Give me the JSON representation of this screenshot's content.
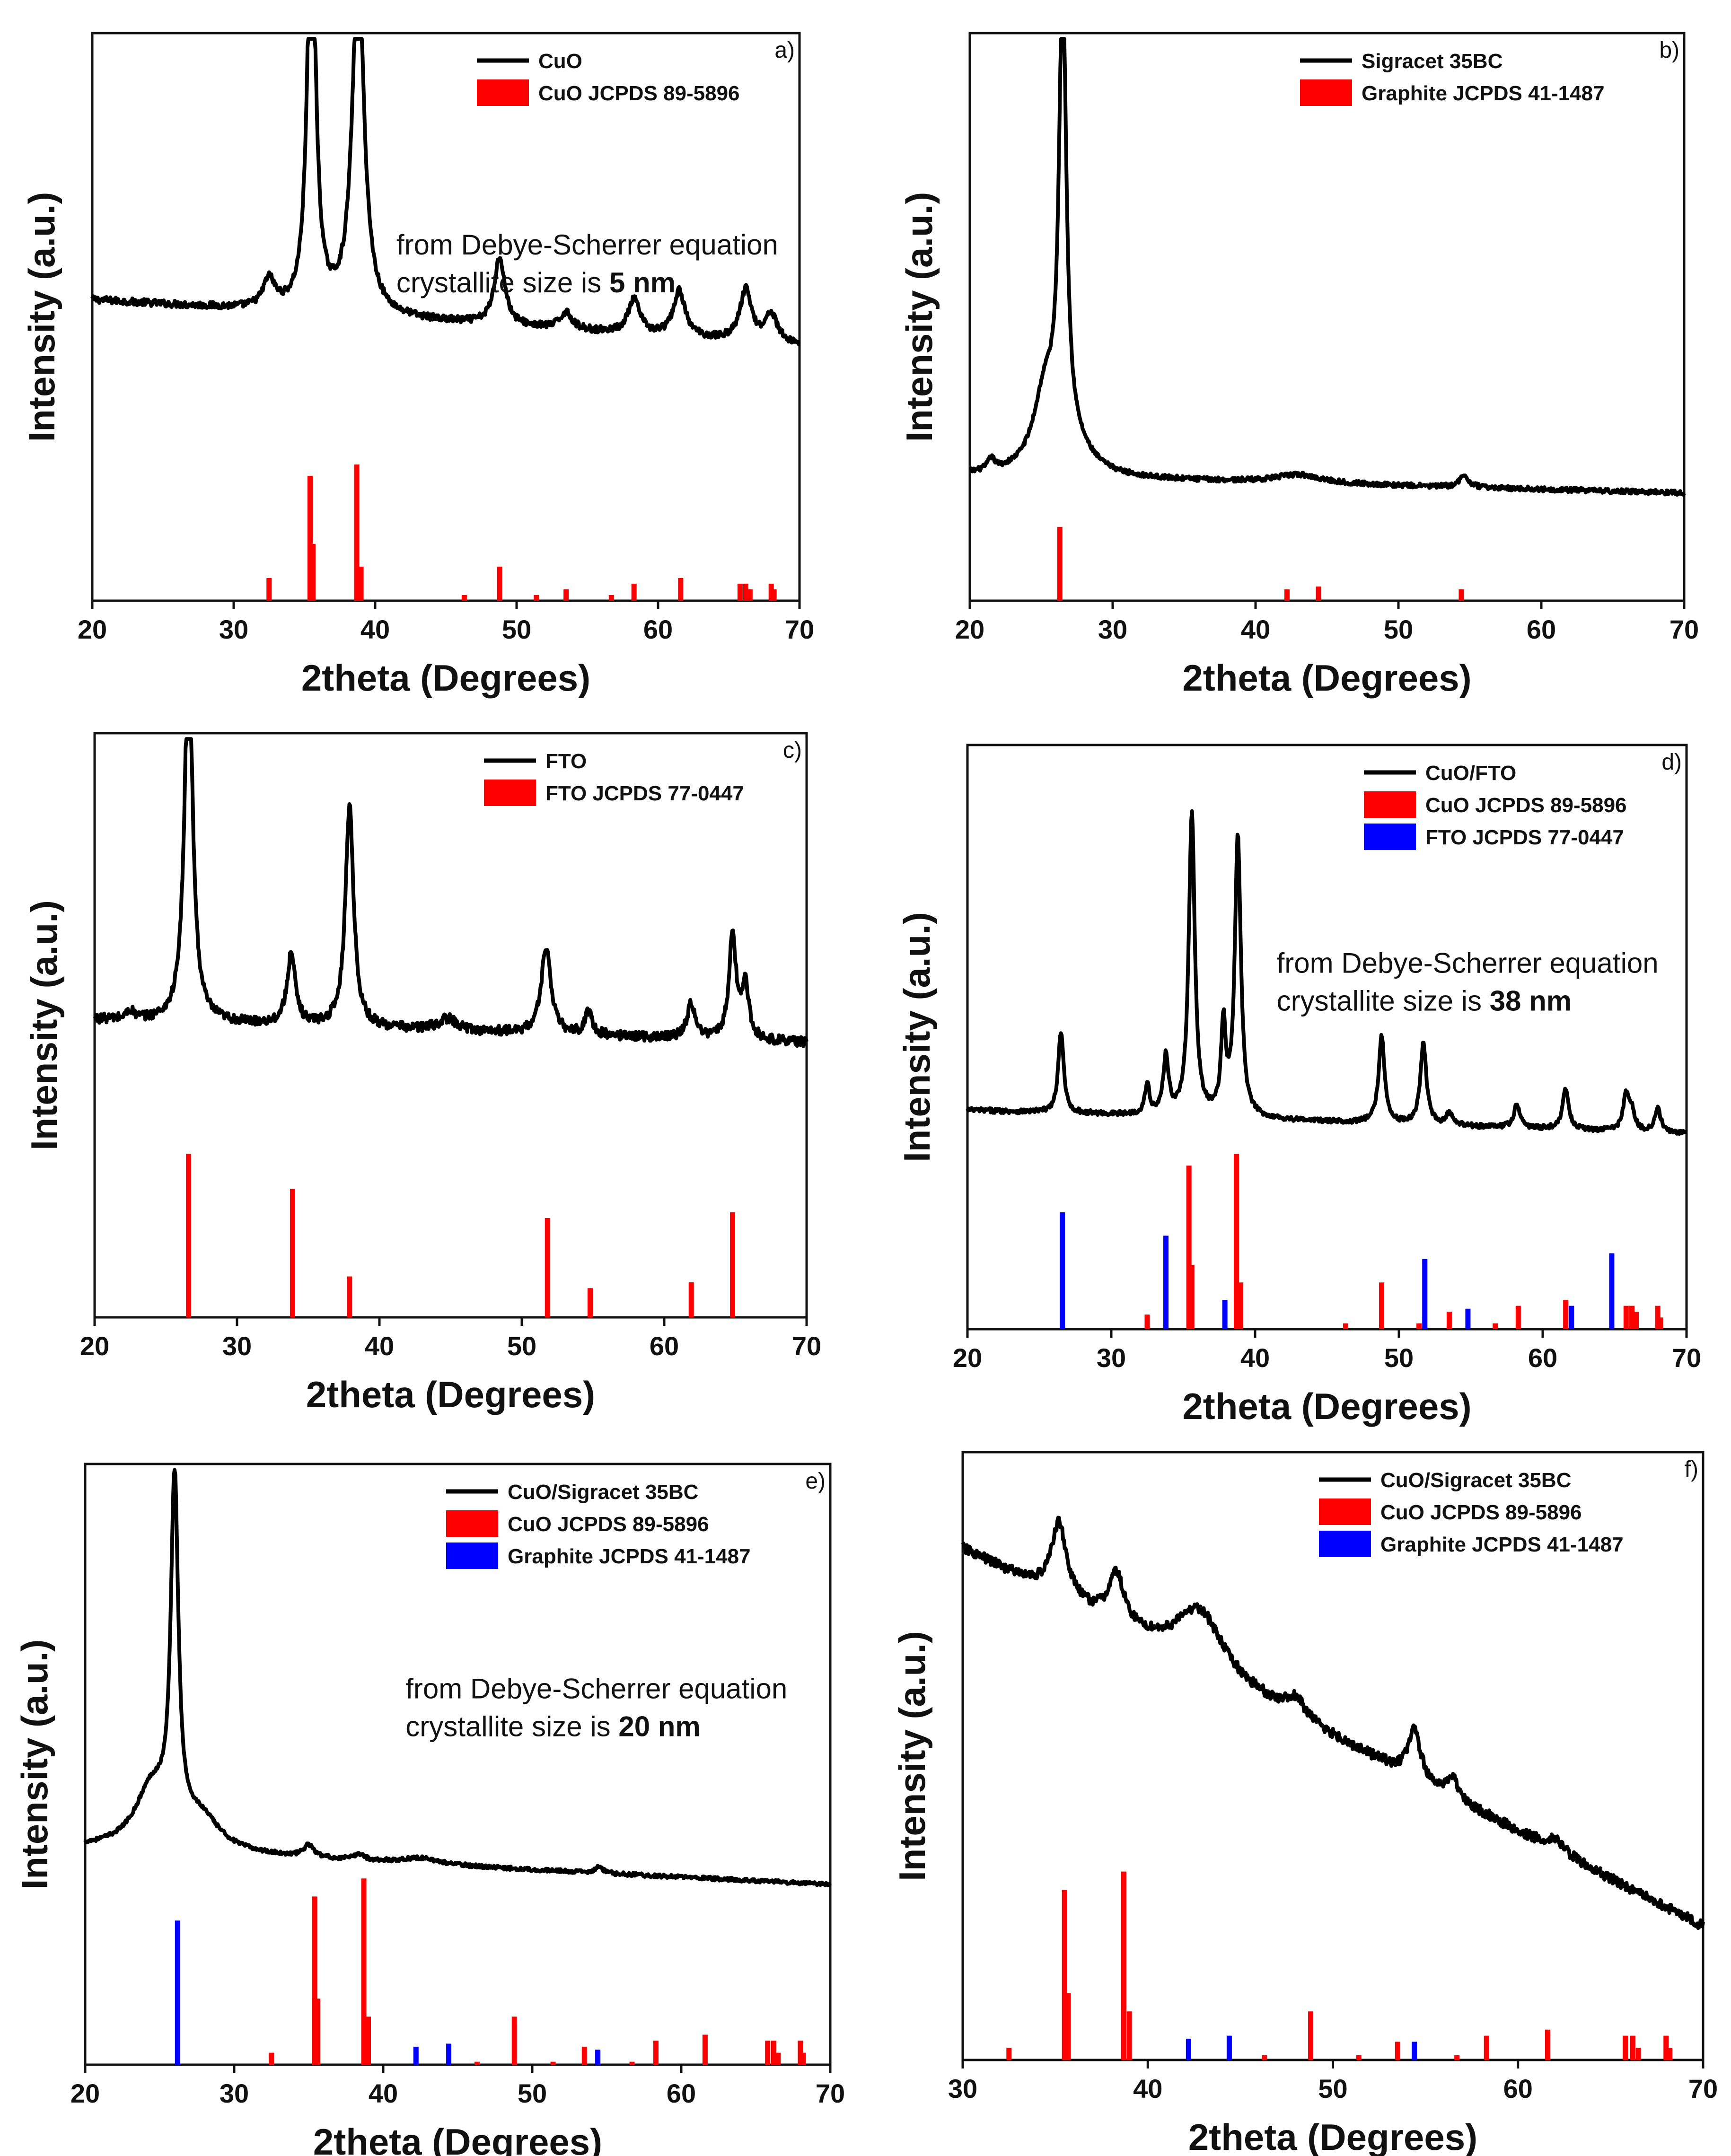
{
  "figure": {
    "title": ""
  },
  "chart_data": [
    {
      "id": "a",
      "type": "line",
      "panel_label": "a)",
      "title": "",
      "xlabel": "2theta (Degrees)",
      "ylabel": "Intensity (a.u.)",
      "xlim": [
        20,
        70
      ],
      "xticks": [
        20,
        30,
        40,
        50,
        60,
        70
      ],
      "xtick_labels": [
        "20",
        "30",
        "40",
        "50",
        "60",
        "70"
      ],
      "grid": false,
      "legend_position": "top-right",
      "annotation": {
        "line1": "from Debye-Scherrer equation",
        "line2_prefix": "crystallite size is ",
        "line2_bold": "5 nm"
      },
      "series": [
        {
          "name": "CuO",
          "kind": "pattern",
          "color": "#000000",
          "baseline": 0.53,
          "slope": -0.08,
          "noise": 0.006,
          "peaks": [
            [
              32.5,
              0.05,
              0.5
            ],
            [
              35.5,
              0.74,
              0.35
            ],
            [
              38.8,
              0.62,
              0.5
            ],
            [
              48.8,
              0.12,
              0.45
            ],
            [
              53.5,
              0.03,
              0.5
            ],
            [
              58.3,
              0.06,
              0.5
            ],
            [
              61.5,
              0.08,
              0.5
            ],
            [
              66.2,
              0.09,
              0.5
            ],
            [
              68.0,
              0.05,
              0.5
            ]
          ]
        },
        {
          "name": "CuO JCPDS 89-5896",
          "kind": "ref",
          "color": "#ff0000",
          "lines": [
            [
              32.5,
              0.04
            ],
            [
              35.4,
              0.22
            ],
            [
              35.6,
              0.1
            ],
            [
              38.7,
              0.24
            ],
            [
              39.0,
              0.06
            ],
            [
              46.3,
              0.01
            ],
            [
              48.8,
              0.06
            ],
            [
              51.4,
              0.01
            ],
            [
              53.5,
              0.02
            ],
            [
              56.7,
              0.01
            ],
            [
              58.3,
              0.03
            ],
            [
              61.6,
              0.04
            ],
            [
              65.8,
              0.03
            ],
            [
              66.2,
              0.03
            ],
            [
              66.5,
              0.02
            ],
            [
              68.0,
              0.03
            ],
            [
              68.2,
              0.02
            ]
          ]
        }
      ]
    },
    {
      "id": "b",
      "type": "line",
      "panel_label": "b)",
      "title": "",
      "xlabel": "2theta (Degrees)",
      "ylabel": "Intensity (a.u.)",
      "xlim": [
        20,
        70
      ],
      "xticks": [
        20,
        30,
        40,
        50,
        60,
        70
      ],
      "xtick_labels": [
        "20",
        "30",
        "40",
        "50",
        "60",
        "70"
      ],
      "grid": false,
      "legend_position": "top-right",
      "annotation": null,
      "series": [
        {
          "name": "Sigracet 35BC",
          "kind": "pattern",
          "color": "#000000",
          "baseline": 0.22,
          "slope": -0.03,
          "noise": 0.004,
          "peaks": [
            [
              21.5,
              0.02,
              0.3
            ],
            [
              25.3,
              0.14,
              1.0
            ],
            [
              26.5,
              0.82,
              0.3
            ],
            [
              27.3,
              0.04,
              1.5
            ],
            [
              43.0,
              0.015,
              2.0
            ],
            [
              54.6,
              0.02,
              0.4
            ]
          ]
        },
        {
          "name": "Graphite JCPDS 41-1487",
          "kind": "ref",
          "color": "#ff0000",
          "lines": [
            [
              26.3,
              0.13
            ],
            [
              42.2,
              0.02
            ],
            [
              44.4,
              0.025
            ],
            [
              54.4,
              0.02
            ]
          ]
        }
      ]
    },
    {
      "id": "c",
      "type": "line",
      "panel_label": "c)",
      "title": "",
      "xlabel": "2theta (Degrees)",
      "ylabel": "Intensity (a.u.)",
      "xlim": [
        20,
        70
      ],
      "xticks": [
        20,
        30,
        40,
        50,
        60,
        70
      ],
      "xtick_labels": [
        "20",
        "30",
        "40",
        "50",
        "60",
        "70"
      ],
      "grid": false,
      "legend_position": "top-right",
      "annotation": null,
      "series": [
        {
          "name": "FTO",
          "kind": "pattern",
          "color": "#000000",
          "baseline": 0.51,
          "slope": -0.04,
          "noise": 0.008,
          "peaks": [
            [
              26.6,
              0.63,
              0.35
            ],
            [
              33.8,
              0.12,
              0.35
            ],
            [
              37.9,
              0.38,
              0.35
            ],
            [
              51.7,
              0.15,
              0.4
            ],
            [
              54.7,
              0.04,
              0.3
            ],
            [
              61.9,
              0.06,
              0.35
            ],
            [
              64.8,
              0.18,
              0.3
            ],
            [
              65.7,
              0.09,
              0.3
            ],
            [
              44.8,
              0.02,
              0.8
            ],
            [
              22.5,
              0.015,
              0.3
            ]
          ]
        },
        {
          "name": "FTO JCPDS 77-0447",
          "kind": "ref",
          "color": "#ff0000",
          "lines": [
            [
              26.6,
              0.28
            ],
            [
              33.9,
              0.22
            ],
            [
              37.9,
              0.07
            ],
            [
              51.8,
              0.17
            ],
            [
              54.8,
              0.05
            ],
            [
              61.9,
              0.06
            ],
            [
              64.8,
              0.18
            ]
          ]
        }
      ]
    },
    {
      "id": "d",
      "type": "line",
      "panel_label": "d)",
      "title": "",
      "xlabel": "2theta (Degrees)",
      "ylabel": "Intensity (a.u.)",
      "xlim": [
        20,
        70
      ],
      "xticks": [
        20,
        30,
        40,
        50,
        60,
        70
      ],
      "xtick_labels": [
        "20",
        "30",
        "40",
        "50",
        "60",
        "70"
      ],
      "grid": false,
      "legend_position": "top-right",
      "annotation": {
        "line1": "from Debye-Scherrer equation",
        "line2_prefix": "crystallite size is ",
        "line2_bold": "38 nm"
      },
      "series": [
        {
          "name": "CuO/FTO",
          "kind": "pattern",
          "color": "#000000",
          "baseline": 0.375,
          "slope": -0.04,
          "noise": 0.004,
          "peaks": [
            [
              26.5,
              0.14,
              0.22
            ],
            [
              32.5,
              0.05,
              0.2
            ],
            [
              33.8,
              0.1,
              0.22
            ],
            [
              35.6,
              0.52,
              0.25
            ],
            [
              37.8,
              0.15,
              0.2
            ],
            [
              38.8,
              0.48,
              0.25
            ],
            [
              48.8,
              0.15,
              0.25
            ],
            [
              51.7,
              0.14,
              0.25
            ],
            [
              53.5,
              0.02,
              0.25
            ],
            [
              58.2,
              0.04,
              0.25
            ],
            [
              61.6,
              0.07,
              0.25
            ],
            [
              65.8,
              0.06,
              0.25
            ],
            [
              66.2,
              0.03,
              0.25
            ],
            [
              68.0,
              0.04,
              0.25
            ]
          ]
        },
        {
          "name": "CuO JCPDS 89-5896",
          "kind": "ref",
          "color": "#ff0000",
          "lines": [
            [
              32.5,
              0.025
            ],
            [
              35.4,
              0.28
            ],
            [
              35.6,
              0.11
            ],
            [
              38.7,
              0.3
            ],
            [
              39.0,
              0.08
            ],
            [
              46.3,
              0.01
            ],
            [
              48.8,
              0.08
            ],
            [
              51.4,
              0.01
            ],
            [
              53.5,
              0.03
            ],
            [
              56.7,
              0.01
            ],
            [
              58.3,
              0.04
            ],
            [
              61.6,
              0.05
            ],
            [
              65.8,
              0.04
            ],
            [
              66.2,
              0.04
            ],
            [
              66.5,
              0.03
            ],
            [
              68.0,
              0.04
            ],
            [
              68.2,
              0.02
            ]
          ]
        },
        {
          "name": "FTO JCPDS 77-0447",
          "kind": "ref",
          "color": "#0000ff",
          "lines": [
            [
              26.6,
              0.2
            ],
            [
              33.8,
              0.16
            ],
            [
              37.9,
              0.05
            ],
            [
              51.8,
              0.12
            ],
            [
              54.8,
              0.035
            ],
            [
              62.0,
              0.04
            ],
            [
              64.8,
              0.13
            ]
          ]
        }
      ]
    },
    {
      "id": "e",
      "type": "line",
      "panel_label": "e)",
      "title": "",
      "xlabel": "2theta (Degrees)",
      "ylabel": "Intensity (a.u.)",
      "xlim": [
        20,
        70
      ],
      "xticks": [
        20,
        30,
        40,
        50,
        60,
        70
      ],
      "xtick_labels": [
        "20",
        "30",
        "40",
        "50",
        "60",
        "70"
      ],
      "grid": false,
      "legend_position": "top-right",
      "annotation": {
        "line1": "from Debye-Scherrer equation",
        "line2_prefix": "crystallite size is ",
        "line2_bold": "20 nm"
      },
      "series": [
        {
          "name": "CuO/Sigracet 35BC",
          "kind": "pattern",
          "color": "#000000",
          "baseline": 0.36,
          "slope": -0.06,
          "noise": 0.003,
          "peaks": [
            [
              24.5,
              0.1,
              1.4
            ],
            [
              26.0,
              0.58,
              0.3
            ],
            [
              27.8,
              0.05,
              1.5
            ],
            [
              35.0,
              0.02,
              0.4
            ],
            [
              38.4,
              0.01,
              0.4
            ],
            [
              42.5,
              0.01,
              1.5
            ],
            [
              54.5,
              0.01,
              0.3
            ]
          ]
        },
        {
          "name": "CuO JCPDS 89-5896",
          "kind": "ref",
          "color": "#ff0000",
          "lines": [
            [
              32.5,
              0.02
            ],
            [
              35.4,
              0.28
            ],
            [
              35.6,
              0.11
            ],
            [
              38.7,
              0.31
            ],
            [
              39.0,
              0.08
            ],
            [
              46.3,
              0.005
            ],
            [
              48.8,
              0.08
            ],
            [
              51.4,
              0.005
            ],
            [
              53.5,
              0.03
            ],
            [
              56.7,
              0.005
            ],
            [
              58.3,
              0.04
            ],
            [
              61.6,
              0.05
            ],
            [
              65.8,
              0.04
            ],
            [
              66.2,
              0.04
            ],
            [
              66.5,
              0.02
            ],
            [
              68.0,
              0.04
            ],
            [
              68.2,
              0.02
            ]
          ]
        },
        {
          "name": "Graphite JCPDS 41-1487",
          "kind": "ref",
          "color": "#0000ff",
          "lines": [
            [
              26.2,
              0.24
            ],
            [
              42.2,
              0.03
            ],
            [
              44.4,
              0.035
            ],
            [
              54.4,
              0.025
            ]
          ]
        }
      ]
    },
    {
      "id": "f",
      "type": "line",
      "panel_label": "f)",
      "title": "",
      "xlabel": "2theta (Degrees)",
      "ylabel": "Intensity (a.u.)",
      "xlim": [
        30,
        70
      ],
      "xticks": [
        30,
        40,
        50,
        60,
        70
      ],
      "xtick_labels": [
        "30",
        "40",
        "50",
        "60",
        "70"
      ],
      "grid": false,
      "legend_position": "top-right",
      "annotation": null,
      "series": [
        {
          "name": "CuO/Sigracet 35BC",
          "kind": "pattern",
          "color": "#000000",
          "baseline": 0.84,
          "slope": -0.62,
          "noise": 0.008,
          "peaks": [
            [
              35.2,
              0.12,
              0.5
            ],
            [
              38.3,
              0.08,
              0.5
            ],
            [
              42.8,
              0.1,
              1.5
            ],
            [
              48.0,
              0.03,
              0.6
            ],
            [
              54.4,
              0.08,
              0.4
            ],
            [
              56.5,
              0.03,
              0.4
            ],
            [
              62.0,
              0.02,
              0.6
            ]
          ]
        },
        {
          "name": "CuO JCPDS 89-5896",
          "kind": "ref",
          "color": "#ff0000",
          "lines": [
            [
              32.5,
              0.02
            ],
            [
              35.5,
              0.28
            ],
            [
              35.7,
              0.11
            ],
            [
              38.7,
              0.31
            ],
            [
              39.0,
              0.08
            ],
            [
              46.3,
              0.008
            ],
            [
              48.8,
              0.08
            ],
            [
              51.4,
              0.008
            ],
            [
              53.5,
              0.03
            ],
            [
              56.7,
              0.008
            ],
            [
              58.3,
              0.04
            ],
            [
              61.6,
              0.05
            ],
            [
              65.8,
              0.04
            ],
            [
              66.2,
              0.04
            ],
            [
              66.5,
              0.02
            ],
            [
              68.0,
              0.04
            ],
            [
              68.2,
              0.02
            ]
          ]
        },
        {
          "name": "Graphite JCPDS 41-1487",
          "kind": "ref",
          "color": "#0000ff",
          "lines": [
            [
              42.2,
              0.035
            ],
            [
              44.4,
              0.04
            ],
            [
              54.4,
              0.03
            ]
          ]
        }
      ]
    }
  ]
}
